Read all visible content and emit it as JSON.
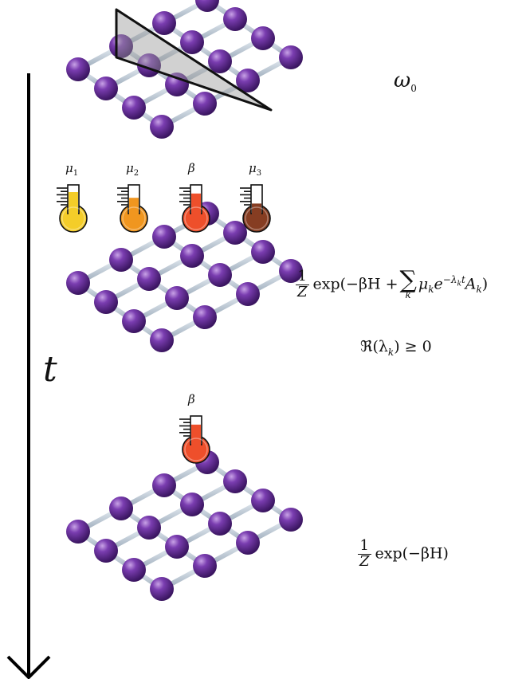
{
  "time_axis": {
    "label": "t"
  },
  "stages": [
    {
      "formula": {
        "symbol": "ω",
        "subscript": "0"
      }
    },
    {
      "formula": {
        "frac_num": "1",
        "frac_den": "Z",
        "pre_sum": "exp(−βH +",
        "sum_symbol": "∑",
        "sum_index": "k",
        "post_mu": "μ",
        "post_mu_sub": "k",
        "post_e": "e",
        "exp_sup": "−λ",
        "exp_sup_sub": "k",
        "exp_sup_t": "t",
        "post_A": "A",
        "post_A_sub": "k",
        "close": ")"
      },
      "condition": "ℜ(λ",
      "condition_sub": "k",
      "condition_tail": ") ≥ 0"
    },
    {
      "formula": {
        "frac_num": "1",
        "frac_den": "Z",
        "expr": "exp(−βH)"
      }
    }
  ],
  "thermometers_row1": [
    {
      "label": "μ",
      "label_sub": "1",
      "color": "#f4cd29",
      "fill": 0.75
    },
    {
      "label": "μ",
      "label_sub": "2",
      "color": "#f0961f",
      "fill": 0.55
    },
    {
      "label": "β",
      "label_sub": "",
      "color": "#ee4f2b",
      "fill": 0.7
    },
    {
      "label": "μ",
      "label_sub": "3",
      "color": "#863d22",
      "fill": 0.35
    }
  ],
  "thermometer_row2": {
    "label": "β",
    "color": "#ee4f2b",
    "fill": 0.7
  },
  "lattice": {
    "atom_color": "#6a2f99",
    "bond_color": "#c9d4de",
    "rows": 4,
    "cols": 4
  }
}
